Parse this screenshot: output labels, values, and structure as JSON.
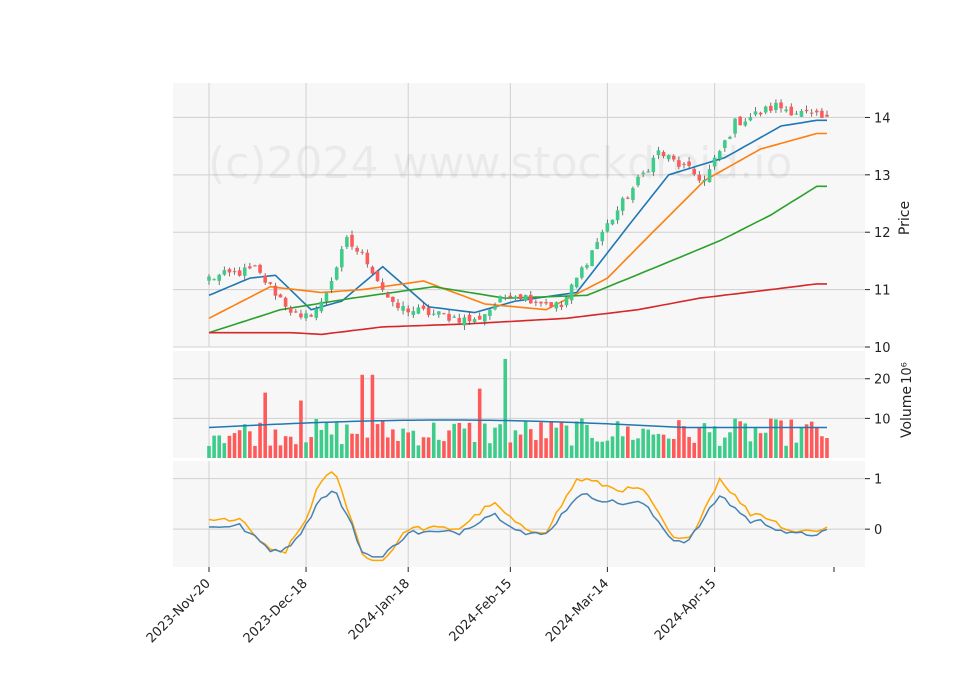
{
  "chart_data": {
    "type": "candlestick",
    "watermark": "(c)2024 www.stockdroid.io",
    "dates": [
      "2023-11-20",
      "2023-11-21",
      "2023-11-22",
      "2023-11-24",
      "2023-11-27",
      "2023-11-28",
      "2023-11-29",
      "2023-11-30",
      "2023-12-01",
      "2023-12-04",
      "2023-12-05",
      "2023-12-06",
      "2023-12-07",
      "2023-12-08",
      "2023-12-11",
      "2023-12-12",
      "2023-12-13",
      "2023-12-14",
      "2023-12-15",
      "2023-12-18",
      "2023-12-19",
      "2023-12-20",
      "2023-12-21",
      "2023-12-22",
      "2023-12-26",
      "2023-12-27",
      "2023-12-28",
      "2023-12-29",
      "2024-01-02",
      "2024-01-03",
      "2024-01-04",
      "2024-01-05",
      "2024-01-08",
      "2024-01-09",
      "2024-01-10",
      "2024-01-11",
      "2024-01-12",
      "2024-01-16",
      "2024-01-17",
      "2024-01-18",
      "2024-01-19",
      "2024-01-22",
      "2024-01-23",
      "2024-01-24",
      "2024-01-25",
      "2024-01-26",
      "2024-01-29",
      "2024-01-30",
      "2024-01-31",
      "2024-02-01",
      "2024-02-02",
      "2024-02-05",
      "2024-02-06",
      "2024-02-07",
      "2024-02-08",
      "2024-02-09",
      "2024-02-12",
      "2024-02-13",
      "2024-02-14",
      "2024-02-15",
      "2024-02-16",
      "2024-02-20",
      "2024-02-21",
      "2024-02-22",
      "2024-02-23",
      "2024-02-26",
      "2024-02-27",
      "2024-02-28",
      "2024-02-29",
      "2024-03-01",
      "2024-03-04",
      "2024-03-05",
      "2024-03-06",
      "2024-03-07",
      "2024-03-08",
      "2024-03-11",
      "2024-03-12",
      "2024-03-13",
      "2024-03-14",
      "2024-03-15",
      "2024-03-18",
      "2024-03-19",
      "2024-03-20",
      "2024-03-21",
      "2024-03-22",
      "2024-03-25",
      "2024-03-26",
      "2024-03-27",
      "2024-03-28",
      "2024-04-01",
      "2024-04-02",
      "2024-04-03",
      "2024-04-04",
      "2024-04-05",
      "2024-04-08",
      "2024-04-09",
      "2024-04-10",
      "2024-04-11",
      "2024-04-12",
      "2024-04-15",
      "2024-04-16",
      "2024-04-17",
      "2024-04-18",
      "2024-04-19",
      "2024-04-22",
      "2024-04-23",
      "2024-04-24",
      "2024-04-25",
      "2024-04-26",
      "2024-04-29",
      "2024-04-30",
      "2024-05-01",
      "2024-05-02",
      "2024-05-03",
      "2024-05-06",
      "2024-05-07",
      "2024-05-08",
      "2024-05-09",
      "2024-05-10",
      "2024-05-13",
      "2024-05-14",
      "2024-05-15"
    ],
    "x_tick_labels": [
      "2023-Nov-20",
      "2023-Dec-18",
      "2024-Jan-18",
      "2024-Feb-15",
      "2024-Mar-14",
      "2024-Apr-15"
    ],
    "price_axis": {
      "label": "Price",
      "ylim": [
        10.0,
        14.6
      ],
      "ticks": [
        10,
        11,
        12,
        13,
        14
      ]
    },
    "volume_axis": {
      "label": "Volume",
      "multiplier": "10^6",
      "ylim": [
        0,
        27
      ],
      "ticks": [
        10,
        20
      ]
    },
    "oscillator_axis": {
      "ylim": [
        -0.75,
        1.35
      ],
      "ticks": [
        0,
        1
      ]
    },
    "ohlc_key_points": [
      {
        "date": "2023-11-20",
        "close": 11.2
      },
      {
        "date": "2023-12-04",
        "close": 11.35
      },
      {
        "date": "2023-12-15",
        "close": 10.45
      },
      {
        "date": "2023-12-21",
        "close": 10.75
      },
      {
        "date": "2023-12-29",
        "close": 11.85
      },
      {
        "date": "2024-01-05",
        "close": 11.5
      },
      {
        "date": "2024-01-12",
        "close": 10.7
      },
      {
        "date": "2024-02-06",
        "close": 10.45
      },
      {
        "date": "2024-02-15",
        "close": 10.95
      },
      {
        "date": "2024-03-01",
        "close": 10.7
      },
      {
        "date": "2024-03-13",
        "close": 12.0
      },
      {
        "date": "2024-03-28",
        "close": 13.4
      },
      {
        "date": "2024-04-11",
        "close": 12.9
      },
      {
        "date": "2024-04-19",
        "close": 13.9
      },
      {
        "date": "2024-05-01",
        "close": 14.2
      },
      {
        "date": "2024-05-15",
        "close": 13.95
      }
    ],
    "moving_averages": [
      {
        "color": "#1f77b4",
        "points": [
          [
            0,
            10.9
          ],
          [
            8,
            11.2
          ],
          [
            13,
            11.25
          ],
          [
            20,
            10.65
          ],
          [
            26,
            10.8
          ],
          [
            34,
            11.4
          ],
          [
            43,
            10.7
          ],
          [
            52,
            10.6
          ],
          [
            60,
            10.8
          ],
          [
            72,
            10.95
          ],
          [
            82,
            12.1
          ],
          [
            90,
            13.0
          ],
          [
            101,
            13.3
          ],
          [
            112,
            13.85
          ],
          [
            119,
            13.95
          ]
        ]
      },
      {
        "color": "#ff7f0e",
        "points": [
          [
            0,
            10.5
          ],
          [
            12,
            11.05
          ],
          [
            22,
            10.95
          ],
          [
            30,
            11.0
          ],
          [
            42,
            11.15
          ],
          [
            54,
            10.75
          ],
          [
            66,
            10.65
          ],
          [
            78,
            11.2
          ],
          [
            88,
            12.1
          ],
          [
            97,
            12.9
          ],
          [
            108,
            13.45
          ],
          [
            119,
            13.72
          ]
        ]
      },
      {
        "color": "#2ca02c",
        "points": [
          [
            0,
            10.25
          ],
          [
            14,
            10.65
          ],
          [
            28,
            10.85
          ],
          [
            44,
            11.05
          ],
          [
            58,
            10.85
          ],
          [
            74,
            10.9
          ],
          [
            85,
            11.3
          ],
          [
            100,
            11.85
          ],
          [
            110,
            12.3
          ],
          [
            119,
            12.8
          ]
        ]
      },
      {
        "color": "#d62728",
        "points": [
          [
            0,
            10.25
          ],
          [
            16,
            10.25
          ],
          [
            22,
            10.22
          ],
          [
            34,
            10.35
          ],
          [
            50,
            10.4
          ],
          [
            70,
            10.5
          ],
          [
            84,
            10.65
          ],
          [
            96,
            10.85
          ],
          [
            110,
            11.0
          ],
          [
            119,
            11.1
          ]
        ]
      }
    ],
    "volume_key_points": [
      {
        "date": "2023-12-06",
        "volume": 16.5
      },
      {
        "date": "2023-12-15",
        "volume": 14.5
      },
      {
        "date": "2024-01-04",
        "volume": 21.0
      },
      {
        "date": "2024-01-08",
        "volume": 21.0
      },
      {
        "date": "2024-02-07",
        "volume": 17.5
      },
      {
        "date": "2024-02-14",
        "volume": 25.0
      }
    ],
    "volume_ma_range": [
      7.5,
      9.6
    ],
    "oscillator_series": [
      {
        "color": "#ffa500",
        "range": [
          -0.62,
          1.3
        ]
      },
      {
        "color": "#4682b4",
        "range": [
          -0.55,
          0.75
        ]
      }
    ],
    "up_color": "#3dcc8a",
    "down_color": "#ff5a5a",
    "grid": true
  }
}
